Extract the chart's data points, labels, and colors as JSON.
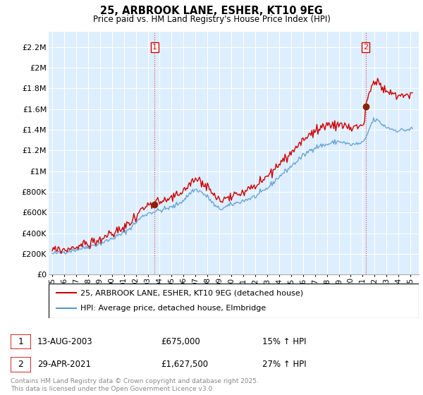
{
  "title": "25, ARBROOK LANE, ESHER, KT10 9EG",
  "subtitle": "Price paid vs. HM Land Registry's House Price Index (HPI)",
  "ylabel_ticks": [
    "£0",
    "£200K",
    "£400K",
    "£600K",
    "£800K",
    "£1M",
    "£1.2M",
    "£1.4M",
    "£1.6M",
    "£1.8M",
    "£2M",
    "£2.2M"
  ],
  "ytick_vals": [
    0,
    200000,
    400000,
    600000,
    800000,
    1000000,
    1200000,
    1400000,
    1600000,
    1800000,
    2000000,
    2200000
  ],
  "ylim": [
    0,
    2300000
  ],
  "red_color": "#cc0000",
  "blue_color": "#5599cc",
  "bg_color": "#ddeeff",
  "vline_color": "#dd4444",
  "sale1_price": 675000,
  "sale2_price": 1627500,
  "legend1": "25, ARBROOK LANE, ESHER, KT10 9EG (detached house)",
  "legend2": "HPI: Average price, detached house, Elmbridge",
  "note1_date": "13-AUG-2003",
  "note1_price": "£675,000",
  "note1_hpi": "15% ↑ HPI",
  "note2_date": "29-APR-2021",
  "note2_price": "£1,627,500",
  "note2_hpi": "27% ↑ HPI",
  "copyright": "Contains HM Land Registry data © Crown copyright and database right 2025.\nThis data is licensed under the Open Government Licence v3.0."
}
